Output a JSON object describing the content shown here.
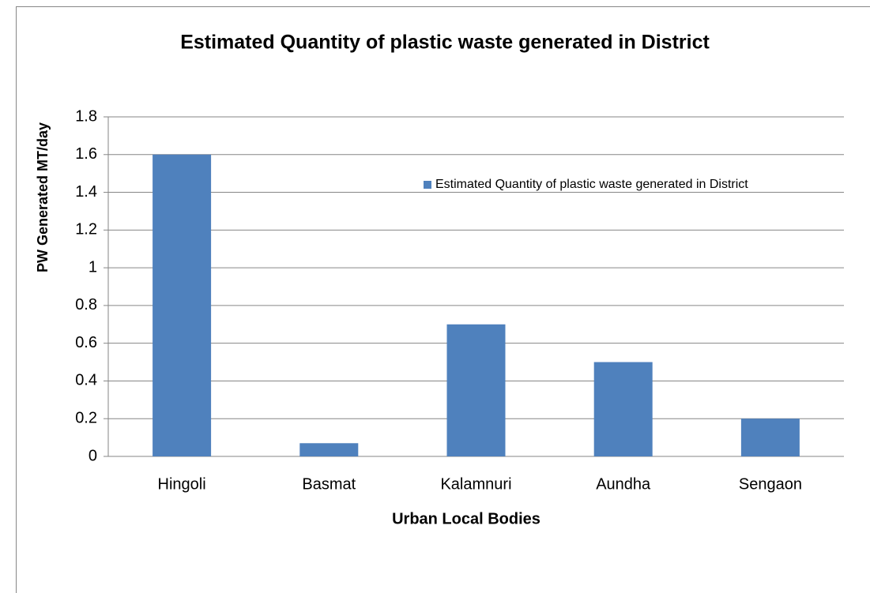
{
  "chart_data": {
    "type": "bar",
    "title": "Estimated Quantity of plastic waste generated in District",
    "x_label": "Urban Local Bodies",
    "y_label": "PW Generated  MT/day",
    "categories": [
      "Hingoli",
      "Basmat",
      "Kalamnuri",
      "Aundha",
      "Sengaon"
    ],
    "series": [
      {
        "name": "Estimated Quantity of plastic waste generated in District",
        "color": "#4f81bd",
        "values": [
          1.6,
          0.07,
          0.7,
          0.5,
          0.2
        ]
      }
    ],
    "ylim": [
      0,
      1.8
    ],
    "yticks": [
      0,
      0.2,
      0.4,
      0.6,
      0.8,
      1,
      1.2,
      1.4,
      1.6,
      1.8
    ],
    "grid": true,
    "legend": "upper right"
  }
}
